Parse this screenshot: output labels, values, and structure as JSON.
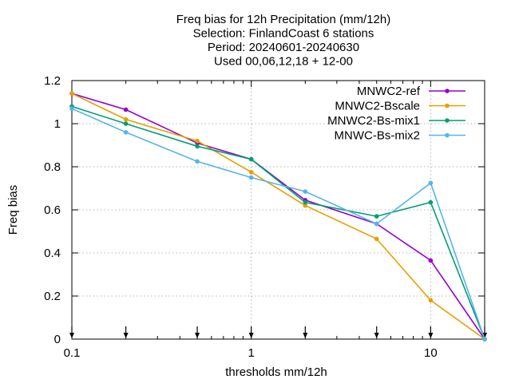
{
  "chart_data": {
    "type": "line",
    "title_lines": [
      "Freq bias  for 12h Precipitation (mm/12h)",
      "Selection: FinlandCoast      6 stations",
      "Period: 20240601-20240630",
      "Used 00,06,12,18 + 12-00"
    ],
    "xlabel": "thresholds mm/12h",
    "ylabel": "Freq bias",
    "xscale": "log",
    "xlim": [
      0.1,
      20
    ],
    "ylim": [
      0,
      1.2
    ],
    "x_ticks": [
      0.1,
      1,
      10
    ],
    "x_tick_labels": [
      "0.1",
      "1",
      "10"
    ],
    "y_ticks": [
      0,
      0.2,
      0.4,
      0.6,
      0.8,
      1,
      1.2
    ],
    "y_tick_labels": [
      "0",
      "0.2",
      "0.4",
      "0.6",
      "0.8",
      "1",
      "1.2"
    ],
    "grid": true,
    "legend_position": "top-right",
    "arrow_markers_x": [
      0.1,
      0.2,
      0.5,
      1,
      2,
      5,
      10,
      20
    ],
    "x": [
      0.1,
      0.2,
      0.5,
      1,
      2,
      5,
      10,
      20
    ],
    "series": [
      {
        "name": "MNWC2-ref",
        "color": "#9400d3",
        "values": [
          1.14,
          1.065,
          0.91,
          0.835,
          0.645,
          0.535,
          0.365,
          0.0
        ]
      },
      {
        "name": "MNWC2-Bscale",
        "color": "#e69f00",
        "values": [
          1.14,
          1.02,
          0.92,
          0.775,
          0.62,
          0.465,
          0.18,
          0.0
        ]
      },
      {
        "name": "MNWC2-Bs-mix1",
        "color": "#009e73",
        "values": [
          1.08,
          1.0,
          0.895,
          0.835,
          0.635,
          0.57,
          0.635,
          0.0
        ]
      },
      {
        "name": "MNWC-Bs-mix2",
        "color": "#56b4e9",
        "values": [
          1.07,
          0.96,
          0.825,
          0.75,
          0.685,
          0.535,
          0.725,
          0.0
        ]
      }
    ]
  }
}
